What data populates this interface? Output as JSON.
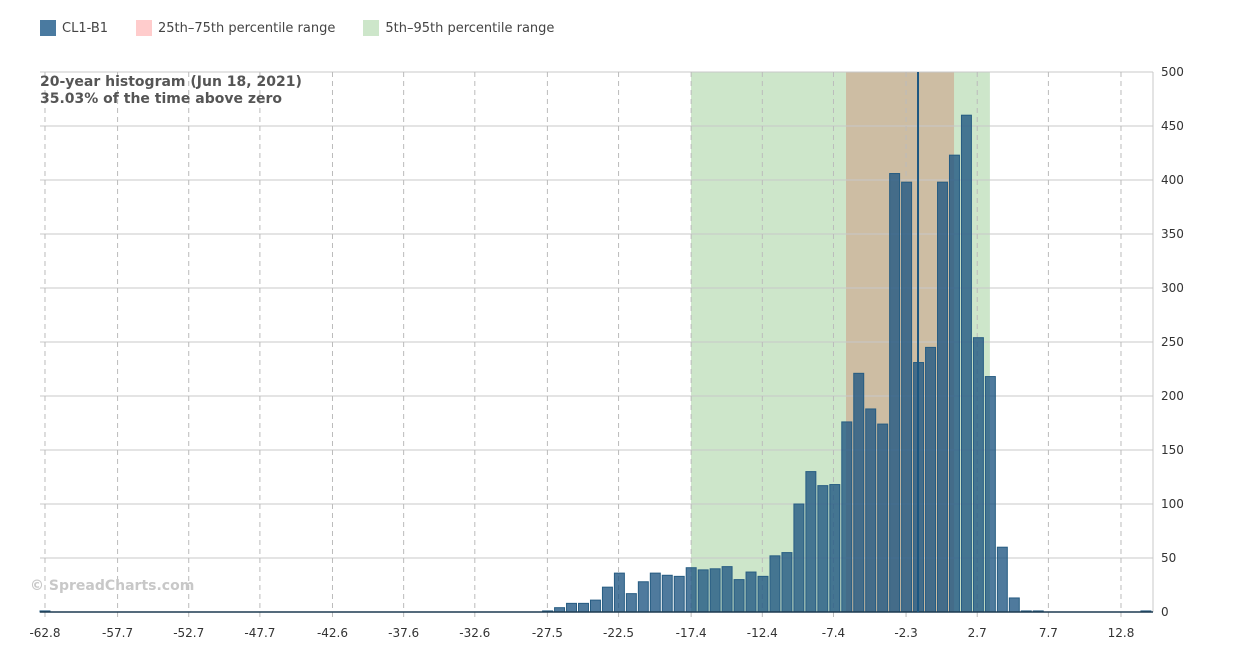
{
  "legend": [
    {
      "label": "CL1-B1",
      "color": "#4a7aa0"
    },
    {
      "label": "25th–75th percentile range",
      "color": "#ffcccc"
    },
    {
      "label": "5th–95th percentile range",
      "color": "#cde6ca"
    }
  ],
  "annotation": {
    "line1": "20-year histogram (Jun 18, 2021)",
    "line2": "35.03% of the time above zero"
  },
  "watermark": "© SpreadCharts.com",
  "chart_data": {
    "type": "bar",
    "title": "20-year histogram (Jun 18, 2021)",
    "subtitle": "35.03% of the time above zero",
    "series_name": "CL1-B1",
    "bin_start": -62.8,
    "bin_width": 0.8408,
    "values": [
      1,
      0,
      0,
      0,
      0,
      0,
      0,
      0,
      0,
      0,
      0,
      0,
      0,
      0,
      0,
      0,
      0,
      0,
      0,
      0,
      0,
      0,
      0,
      0,
      0,
      0,
      0,
      0,
      0,
      0,
      0,
      0,
      0,
      0,
      0,
      0,
      0,
      0,
      0,
      0,
      0,
      0,
      1,
      4,
      8,
      8,
      11,
      23,
      36,
      17,
      28,
      36,
      34,
      33,
      41,
      39,
      40,
      42,
      30,
      37,
      33,
      52,
      55,
      100,
      130,
      117,
      118,
      176,
      221,
      188,
      174,
      406,
      398,
      231,
      245,
      398,
      423,
      460,
      254,
      218,
      60,
      13,
      1,
      1,
      0,
      0,
      0,
      0,
      0,
      0,
      0,
      0,
      1
    ],
    "xlim": [
      -63.15,
      15.05
    ],
    "ylim": [
      0,
      500
    ],
    "x_ticks": [
      "-62.8",
      "-57.7",
      "-52.7",
      "-47.7",
      "-42.6",
      "-37.6",
      "-32.6",
      "-27.5",
      "-22.5",
      "-17.4",
      "-12.4",
      "-7.4",
      "-2.3",
      "2.7",
      "7.7",
      "12.8"
    ],
    "y_ticks": [
      "0",
      "50",
      "100",
      "150",
      "200",
      "250",
      "300",
      "350",
      "400",
      "450",
      "500"
    ],
    "percentile_5_95": [
      -17.41,
      3.59
    ],
    "percentile_25_75": [
      -6.52,
      1.07
    ],
    "current_value": -1.46,
    "grid": true,
    "y_axis_side": "right",
    "legend_position": "top-left"
  }
}
